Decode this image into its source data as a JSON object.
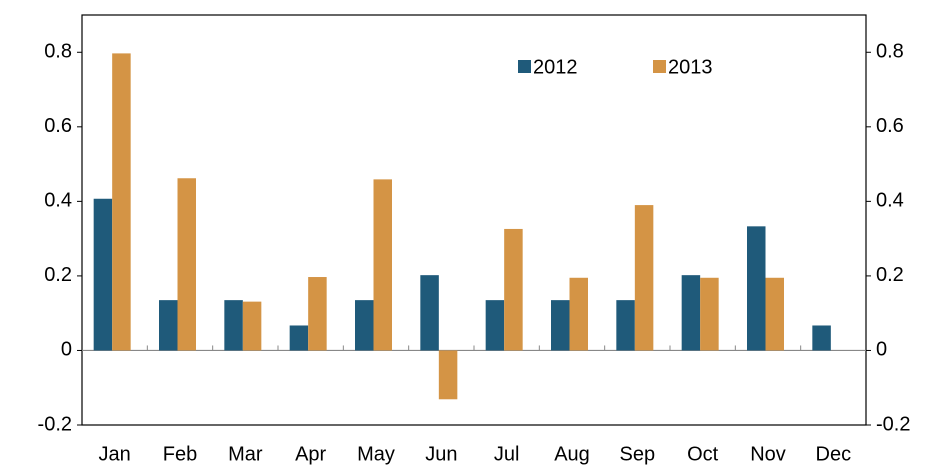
{
  "chart_data": {
    "type": "bar",
    "categories": [
      "Jan",
      "Feb",
      "Mar",
      "Apr",
      "May",
      "Jun",
      "Jul",
      "Aug",
      "Sep",
      "Oct",
      "Nov",
      "Dec"
    ],
    "series": [
      {
        "name": "2012",
        "color": "#1f5a7a",
        "values": [
          0.407,
          0.135,
          0.135,
          0.067,
          0.135,
          0.202,
          0.135,
          0.135,
          0.135,
          0.202,
          0.333,
          0.067
        ]
      },
      {
        "name": "2013",
        "color": "#d49445",
        "values": [
          0.797,
          0.462,
          0.131,
          0.197,
          0.459,
          -0.131,
          0.326,
          0.195,
          0.39,
          0.195,
          0.195,
          null
        ]
      }
    ],
    "ylim": [
      -0.2,
      0.9
    ],
    "yticks": [
      -0.2,
      0,
      0.2,
      0.4,
      0.6,
      0.8
    ],
    "y2lim": [
      -0.2,
      0.9
    ],
    "y2ticks": [
      -0.2,
      0,
      0.2,
      0.4,
      0.6,
      0.8
    ]
  }
}
